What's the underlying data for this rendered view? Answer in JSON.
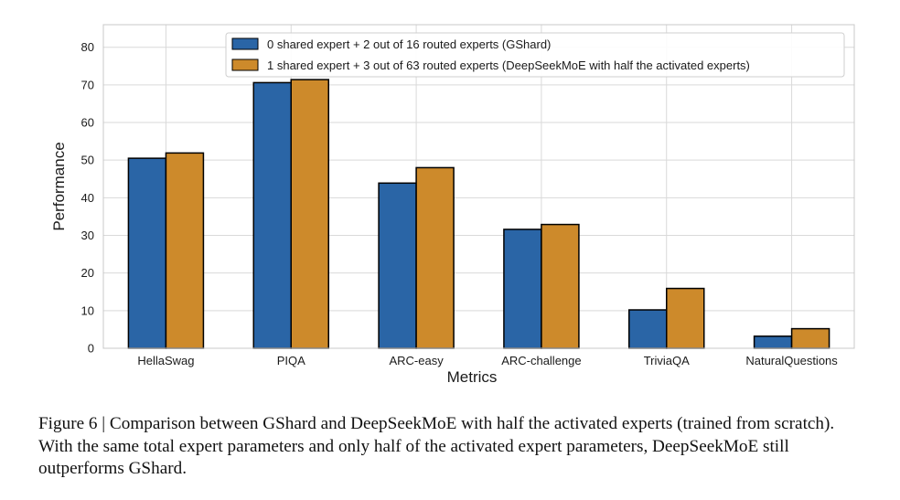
{
  "chart_data": {
    "type": "bar",
    "title": "",
    "xlabel": "Metrics",
    "ylabel": "Performance",
    "ylim": [
      0,
      86
    ],
    "yticks": [
      0,
      10,
      20,
      30,
      40,
      50,
      60,
      70,
      80
    ],
    "grid": true,
    "legend_position": "top-center",
    "categories": [
      "HellaSwag",
      "PIQA",
      "ARC-easy",
      "ARC-challenge",
      "TriviaQA",
      "NaturalQuestions"
    ],
    "series": [
      {
        "name": "0 shared expert + 2 out of 16 routed experts (GShard)",
        "color": "#2a65a6",
        "values": [
          50.5,
          70.6,
          43.9,
          31.6,
          10.2,
          3.2
        ]
      },
      {
        "name": "1 shared expert + 3 out of 63 routed experts (DeepSeekMoE with half the activated experts)",
        "color": "#cd8a2b",
        "values": [
          51.9,
          71.4,
          48.0,
          32.9,
          15.9,
          5.2
        ]
      }
    ]
  },
  "caption": {
    "text": "Figure 6 | Comparison between GShard and DeepSeekMoE with half the activated experts (trained from scratch). With the same total expert parameters and only half of the activated expert parameters, DeepSeekMoE still outperforms GShard."
  }
}
